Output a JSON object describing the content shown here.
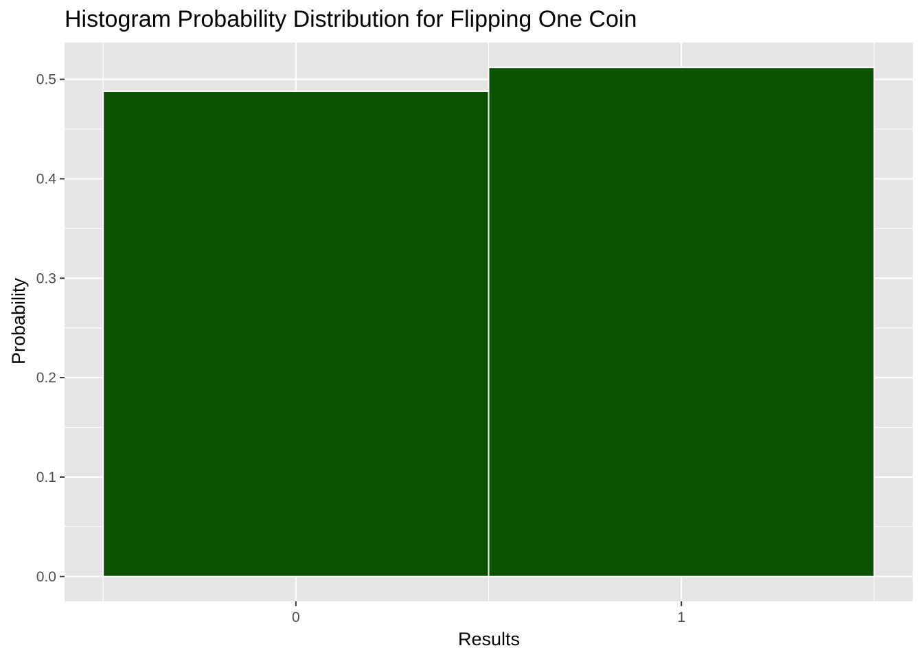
{
  "chart_data": {
    "type": "bar",
    "title": "Histogram Probability Distribution for Flipping One Coin",
    "xlabel": "Results",
    "ylabel": "Probability",
    "categories": [
      "0",
      "1"
    ],
    "values": [
      0.488,
      0.512
    ],
    "x_ticks": [
      "0",
      "1"
    ],
    "y_ticks": [
      "0.0",
      "0.1",
      "0.2",
      "0.3",
      "0.4",
      "0.5"
    ],
    "ylim": [
      -0.025,
      0.537
    ],
    "grid": true,
    "legend": "none",
    "colors": {
      "bar_fill": "#0b5303",
      "bar_outline": "#ffffff",
      "panel_background": "#e5e5e5",
      "grid": "#ffffff",
      "tick_text": "#4d4d4d",
      "text": "#000000"
    }
  }
}
